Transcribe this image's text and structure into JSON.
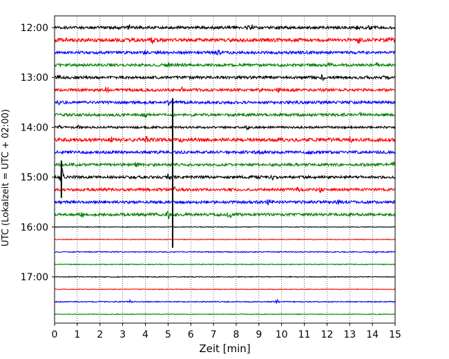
{
  "chart_data": {
    "type": "line",
    "title": "",
    "xlabel": "Zeit  [min]",
    "ylabel": "UTC (Lokalzeit = UTC + 02:00)",
    "xlim": [
      0,
      15
    ],
    "x_ticks": [
      0,
      1,
      2,
      3,
      4,
      5,
      6,
      7,
      8,
      9,
      10,
      11,
      12,
      13,
      14,
      15
    ],
    "y_ticks": [
      "12:00",
      "13:00",
      "14:00",
      "15:00",
      "16:00",
      "17:00"
    ],
    "grid": "vertical-dotted",
    "legend": "none",
    "trace_colors": [
      "#000000",
      "#ff0000",
      "#0000ff",
      "#008000"
    ],
    "traces": [
      {
        "start": "12:00",
        "amplitude": 4,
        "spikes": [
          [
            3.3,
            6
          ],
          [
            8.5,
            6
          ],
          [
            8.7,
            5
          ],
          [
            13.3,
            5
          ],
          [
            13.9,
            8
          ]
        ]
      },
      {
        "start": "12:15",
        "amplitude": 5,
        "spikes": [
          [
            0.5,
            4
          ],
          [
            4.3,
            7
          ],
          [
            13.4,
            6
          ],
          [
            14.8,
            7
          ]
        ]
      },
      {
        "start": "12:30",
        "amplitude": 4,
        "spikes": [
          [
            4.0,
            5
          ],
          [
            7.2,
            5
          ],
          [
            9.8,
            5
          ]
        ]
      },
      {
        "start": "12:45",
        "amplitude": 4,
        "spikes": [
          [
            5.0,
            5
          ],
          [
            10.0,
            6
          ],
          [
            12.1,
            5
          ],
          [
            14.2,
            4
          ]
        ]
      },
      {
        "start": "13:00",
        "amplitude": 4,
        "spikes": [
          [
            0.2,
            7
          ],
          [
            11.8,
            6
          ],
          [
            14.6,
            5
          ]
        ]
      },
      {
        "start": "13:15",
        "amplitude": 4,
        "spikes": [
          [
            2.3,
            8
          ],
          [
            5.6,
            6
          ],
          [
            9.0,
            5
          ],
          [
            9.9,
            5
          ]
        ]
      },
      {
        "start": "13:30",
        "amplitude": 4,
        "spikes": [
          [
            0.2,
            5
          ],
          [
            5.0,
            6
          ]
        ]
      },
      {
        "start": "13:45",
        "amplitude": 4,
        "spikes": [
          [
            4.0,
            5
          ],
          [
            13.5,
            7
          ]
        ]
      },
      {
        "start": "14:00",
        "amplitude": 3,
        "spikes": [
          [
            0.2,
            4
          ],
          [
            1.1,
            6
          ],
          [
            8.5,
            6
          ]
        ]
      },
      {
        "start": "14:15",
        "amplitude": 5,
        "spikes": [
          [
            2.5,
            5
          ],
          [
            4.0,
            8
          ],
          [
            5.6,
            5
          ],
          [
            6.4,
            5
          ],
          [
            13.0,
            7
          ]
        ]
      },
      {
        "start": "14:30",
        "amplitude": 4,
        "spikes": [
          [
            9.1,
            7
          ],
          [
            11.3,
            5
          ]
        ]
      },
      {
        "start": "14:45",
        "amplitude": 4,
        "spikes": [
          [
            3.6,
            6
          ],
          [
            14.9,
            9
          ]
        ]
      },
      {
        "start": "15:00",
        "amplitude": 4,
        "spikes": [
          [
            0.3,
            30
          ],
          [
            5.0,
            7
          ],
          [
            9.6,
            5
          ]
        ]
      },
      {
        "start": "15:15",
        "amplitude": 4,
        "spikes": [
          [
            5.3,
            7
          ],
          [
            10.7,
            5
          ],
          [
            11.7,
            8
          ]
        ]
      },
      {
        "start": "15:30",
        "amplitude": 4,
        "spikes": [
          [
            9.4,
            6
          ],
          [
            12.5,
            4
          ]
        ]
      },
      {
        "start": "15:45",
        "amplitude": 4,
        "spikes": [
          [
            1.2,
            4
          ],
          [
            5.0,
            10
          ],
          [
            7.7,
            10
          ]
        ]
      },
      {
        "start": "16:00",
        "amplitude": 1,
        "spikes": []
      },
      {
        "start": "16:15",
        "amplitude": 1,
        "spikes": []
      },
      {
        "start": "16:30",
        "amplitude": 1.5,
        "spikes": [
          [
            14.1,
            3
          ]
        ]
      },
      {
        "start": "16:45",
        "amplitude": 1.2,
        "spikes": []
      },
      {
        "start": "17:00",
        "amplitude": 1.2,
        "spikes": []
      },
      {
        "start": "17:15",
        "amplitude": 1,
        "spikes": []
      },
      {
        "start": "17:30",
        "amplitude": 1.5,
        "spikes": [
          [
            3.3,
            7
          ],
          [
            9.8,
            6
          ]
        ]
      },
      {
        "start": "17:45",
        "amplitude": 1,
        "spikes": []
      }
    ],
    "events": [
      {
        "start": "13:30",
        "time": 5.2,
        "end": "16:15"
      },
      {
        "start": "14:45",
        "time": 0.3,
        "end": "15:15"
      }
    ]
  }
}
